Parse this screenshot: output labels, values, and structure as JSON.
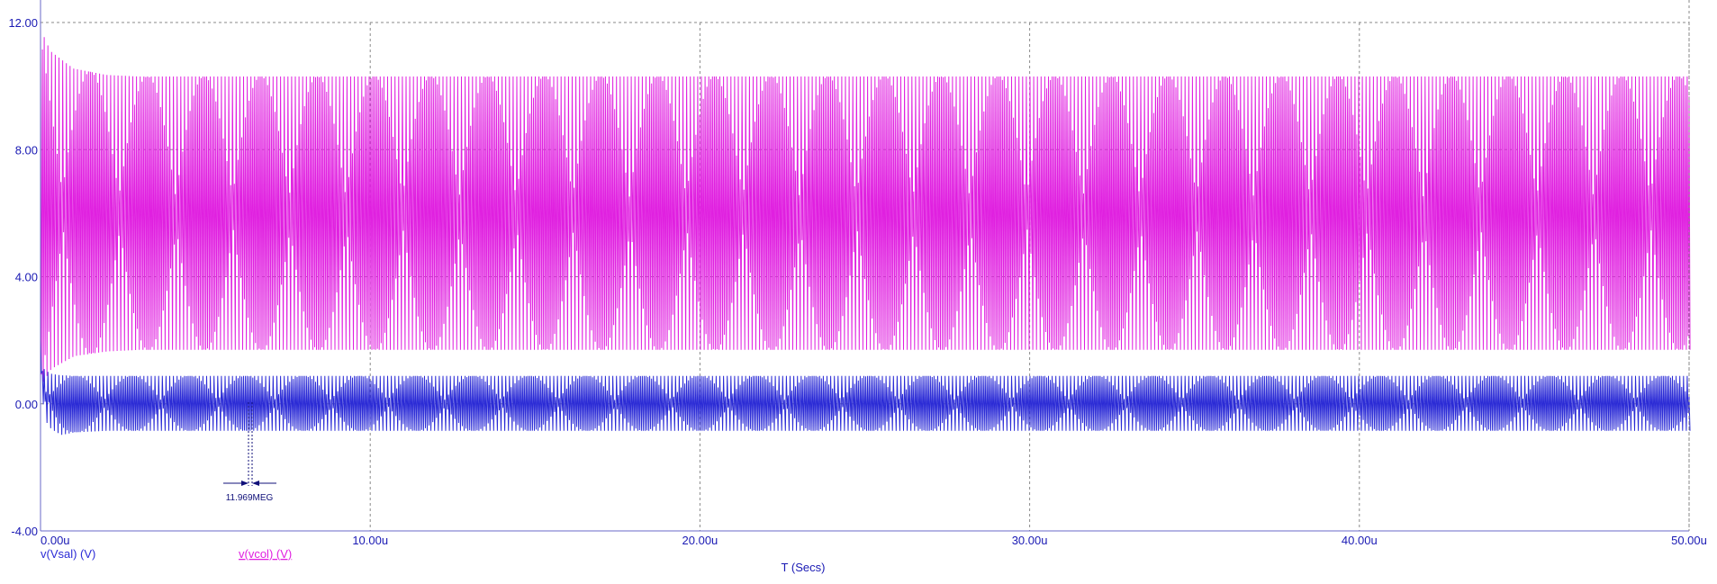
{
  "chart_data": {
    "type": "line",
    "title": "",
    "xlabel": "T (Secs)",
    "ylabel": "",
    "xlim": [
      0,
      50
    ],
    "ylim": [
      -4,
      12
    ],
    "x_ticks": [
      0,
      10,
      20,
      30,
      40,
      50
    ],
    "x_tick_labels": [
      "0.00u",
      "10.00u",
      "20.00u",
      "30.00u",
      "40.00u",
      "50.00u"
    ],
    "y_ticks": [
      12,
      8,
      4,
      0,
      -4
    ],
    "y_tick_labels": [
      "12.00",
      "8.00",
      "4.00",
      "0.00",
      "-4.00"
    ],
    "grid": true,
    "series": [
      {
        "name": "v(Vsal) (V)",
        "color": "#2b2bd6",
        "envelope_x": [
          0,
          0.1,
          0.3,
          0.6,
          1.0,
          2.0,
          50
        ],
        "envelope_upper": [
          2.0,
          1.1,
          0.95,
          0.9,
          0.88,
          0.88,
          0.88
        ],
        "envelope_lower": [
          0.6,
          -0.5,
          -0.8,
          -0.98,
          -0.9,
          -0.85,
          -0.85
        ],
        "beat_period": 1.72
      },
      {
        "name": "v(vcol) (V)",
        "color": "#e020e0",
        "envelope_x": [
          0,
          0.3,
          1.0,
          2.0,
          3.0,
          50
        ],
        "envelope_upper": [
          11.8,
          11.1,
          10.55,
          10.35,
          10.3,
          10.3
        ],
        "envelope_lower": [
          0.6,
          1.1,
          1.5,
          1.65,
          1.7,
          1.7
        ],
        "beat_period": 1.72
      }
    ],
    "annotations": [
      {
        "text": "11.969MEG",
        "x": 6.35,
        "y": -2.6
      }
    ]
  },
  "legend": {
    "vsal_label": "v(Vsal) (V)",
    "vcol_label": "v(vcol) (V)"
  },
  "measurement": {
    "text": "11.969MEG"
  },
  "axis": {
    "xlabel": "T (Secs)"
  }
}
